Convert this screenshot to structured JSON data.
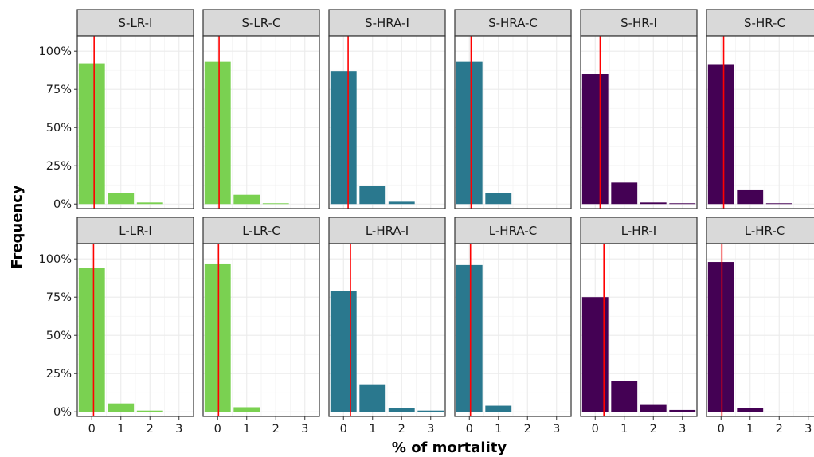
{
  "colors": {
    "light_green": "#7AD151",
    "teal": "#2A788E",
    "purple": "#440154",
    "reference_line": "#FF0000",
    "strip_bg": "#D9D9D9",
    "grid": "#EBEBEB",
    "panel_border": "#333333"
  },
  "chart_data": {
    "type": "bar",
    "xlabel": "% of mortality",
    "ylabel": "Frequency",
    "x_ticks": [
      "0",
      "1",
      "2",
      "3"
    ],
    "y_ticks": [
      "0%",
      "25%",
      "50%",
      "75%",
      "100%"
    ],
    "xlim": [
      -0.5,
      3.5
    ],
    "ylim": [
      -0.03,
      1.1
    ],
    "grid": true,
    "legend": "none",
    "panels": [
      {
        "label": "S-LR-I",
        "color": "light_green",
        "categories": [
          0,
          1,
          2,
          3
        ],
        "values": [
          0.92,
          0.07,
          0.01,
          0.0
        ],
        "ref_line": 0.08
      },
      {
        "label": "S-LR-C",
        "color": "light_green",
        "categories": [
          0,
          1,
          2,
          3
        ],
        "values": [
          0.93,
          0.06,
          0.005,
          0.0
        ],
        "ref_line": 0.05
      },
      {
        "label": "S-HRA-I",
        "color": "teal",
        "categories": [
          0,
          1,
          2,
          3
        ],
        "values": [
          0.87,
          0.12,
          0.015,
          0.0
        ],
        "ref_line": 0.16
      },
      {
        "label": "S-HRA-C",
        "color": "teal",
        "categories": [
          0,
          1,
          2,
          3
        ],
        "values": [
          0.93,
          0.07,
          0.0,
          0.0
        ],
        "ref_line": 0.06
      },
      {
        "label": "S-HR-I",
        "color": "purple",
        "categories": [
          0,
          1,
          2,
          3
        ],
        "values": [
          0.85,
          0.14,
          0.01,
          0.005
        ],
        "ref_line": 0.17
      },
      {
        "label": "S-HR-C",
        "color": "purple",
        "categories": [
          0,
          1,
          2,
          3
        ],
        "values": [
          0.91,
          0.09,
          0.005,
          0.0
        ],
        "ref_line": 0.09
      },
      {
        "label": "L-LR-I",
        "color": "light_green",
        "categories": [
          0,
          1,
          2,
          3
        ],
        "values": [
          0.94,
          0.055,
          0.008,
          0.0
        ],
        "ref_line": 0.06
      },
      {
        "label": "L-LR-C",
        "color": "light_green",
        "categories": [
          0,
          1,
          2,
          3
        ],
        "values": [
          0.97,
          0.03,
          0.0,
          0.0
        ],
        "ref_line": 0.03
      },
      {
        "label": "L-HRA-I",
        "color": "teal",
        "categories": [
          0,
          1,
          2,
          3
        ],
        "values": [
          0.79,
          0.18,
          0.025,
          0.008
        ],
        "ref_line": 0.24
      },
      {
        "label": "L-HRA-C",
        "color": "teal",
        "categories": [
          0,
          1,
          2,
          3
        ],
        "values": [
          0.96,
          0.04,
          0.0,
          0.0
        ],
        "ref_line": 0.04
      },
      {
        "label": "L-HR-I",
        "color": "purple",
        "categories": [
          0,
          1,
          2,
          3
        ],
        "values": [
          0.75,
          0.2,
          0.045,
          0.012
        ],
        "ref_line": 0.3
      },
      {
        "label": "L-HR-C",
        "color": "purple",
        "categories": [
          0,
          1,
          2,
          3
        ],
        "values": [
          0.98,
          0.025,
          0.0,
          0.0
        ],
        "ref_line": 0.03
      }
    ]
  }
}
